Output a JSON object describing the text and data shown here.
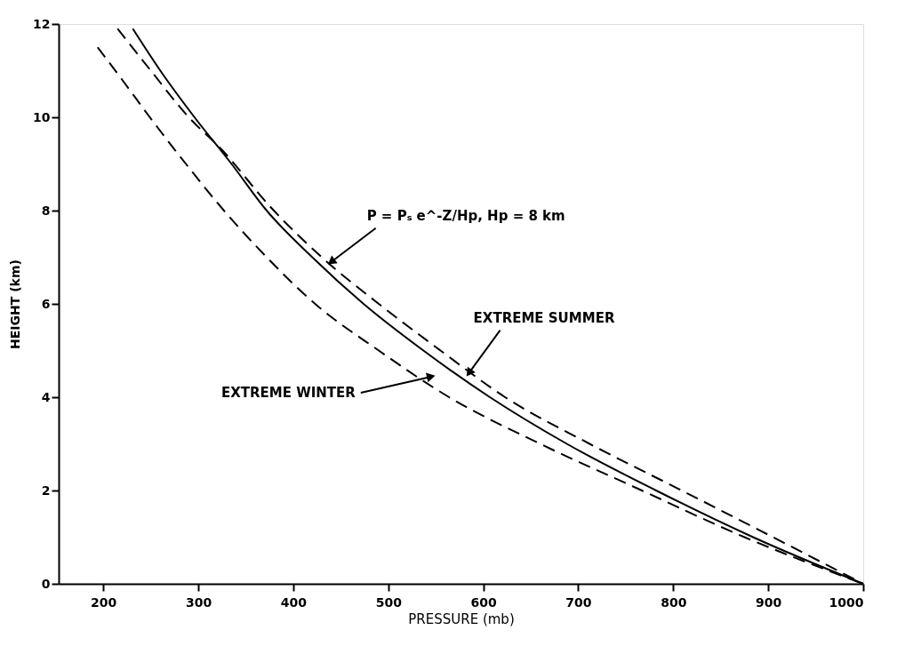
{
  "chart_data": {
    "type": "line",
    "xlabel": "PRESSURE (mb)",
    "ylabel": "HEIGHT (km)",
    "xlim": [
      153,
      1000
    ],
    "ylim": [
      0,
      12
    ],
    "xticks": [
      200,
      300,
      400,
      500,
      600,
      700,
      800,
      900,
      1000
    ],
    "yticks": [
      0,
      2,
      4,
      6,
      8,
      10,
      12
    ],
    "grid": false,
    "marker": "none",
    "series": [
      {
        "color": "#000000",
        "line_style": "solid",
        "x": [
          231,
          260,
          296,
          335,
          372,
          420,
          474,
          537,
          607,
          688,
          782,
          884,
          1000
        ],
        "values": [
          11.9,
          11,
          10,
          9,
          8,
          7,
          6,
          5,
          4,
          3,
          2,
          1,
          0
        ]
      },
      {
        "color": "#000000",
        "line_style": "dashed",
        "x": [
          215,
          250,
          290,
          325,
          375,
          430,
          490,
          555,
          623,
          712,
          809,
          905,
          1000
        ],
        "values": [
          11.9,
          11,
          10,
          9.3,
          8.1,
          7,
          6,
          5,
          4,
          3,
          2,
          1,
          0
        ]
      },
      {
        "color": "#000000",
        "line_style": "dashed",
        "x": [
          194,
          220,
          249,
          287,
          327,
          372,
          423,
          490,
          564,
          660,
          767,
          875,
          1000
        ],
        "values": [
          11.5,
          10.8,
          10,
          9,
          8,
          7,
          6,
          5,
          4,
          3,
          2,
          1,
          0
        ]
      }
    ],
    "annotations": [
      {
        "text": "P = Pₛ e^-Z/Hp, Hp = 8 km",
        "x": 440,
        "y": 6.9
      },
      {
        "text": "EXTREME SUMMER",
        "x": 585,
        "y": 4.52
      },
      {
        "text": "EXTREME WINTER",
        "x": 545,
        "y": 4.44
      }
    ]
  }
}
